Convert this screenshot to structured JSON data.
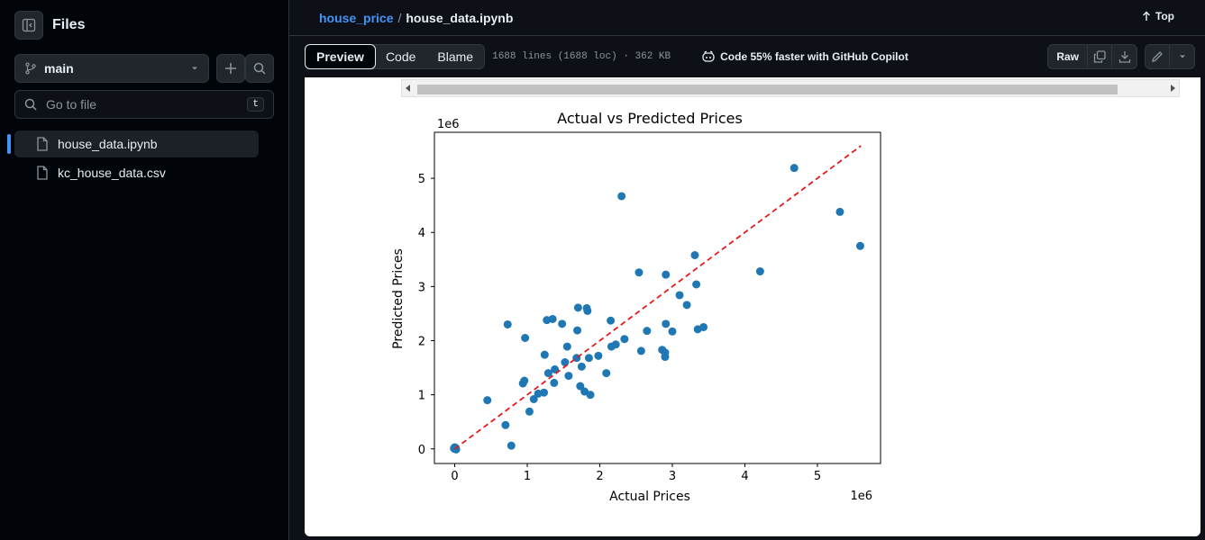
{
  "sidebar": {
    "title": "Files",
    "branch": "main",
    "search_placeholder": "Go to file",
    "search_shortcut": "t",
    "files": [
      {
        "name": "house_data.ipynb",
        "active": true
      },
      {
        "name": "kc_house_data.csv",
        "active": false
      }
    ]
  },
  "header": {
    "repo": "house_price",
    "separator": "/",
    "file": "house_data.ipynb",
    "top_link": "Top"
  },
  "toolbar": {
    "tabs": [
      "Preview",
      "Code",
      "Blame"
    ],
    "active_tab": "Preview",
    "meta": "1688 lines (1688 loc) · 362 KB",
    "copilot": "Code 55% faster with GitHub Copilot",
    "raw": "Raw"
  },
  "colors": {
    "accent": "#4493f8",
    "point": "#1f77b4",
    "ideal_line": "#e41a1c"
  },
  "chart_data": {
    "type": "scatter",
    "title": "Actual vs Predicted Prices",
    "xlabel": "Actual Prices",
    "ylabel": "Predicted Prices",
    "x_offset_label": "1e6",
    "y_offset_label": "1e6",
    "xlim": [
      -0.28,
      5.87
    ],
    "ylim": [
      -0.27,
      5.85
    ],
    "xticks": [
      0,
      1,
      2,
      3,
      4,
      5
    ],
    "yticks": [
      0,
      1,
      2,
      3,
      4,
      5
    ],
    "reference_line": {
      "style": "dashed",
      "from": [
        0,
        0
      ],
      "to": [
        5.6,
        5.6
      ]
    },
    "points": [
      [
        0.0,
        0.0
      ],
      [
        0.01,
        0.02
      ],
      [
        -0.01,
        0.01
      ],
      [
        0.02,
        -0.01
      ],
      [
        0.0,
        0.03
      ],
      [
        0.45,
        0.9
      ],
      [
        0.7,
        0.44
      ],
      [
        0.73,
        2.3
      ],
      [
        0.78,
        0.06
      ],
      [
        0.94,
        1.21
      ],
      [
        0.96,
        1.26
      ],
      [
        0.97,
        2.05
      ],
      [
        1.03,
        0.69
      ],
      [
        1.09,
        0.92
      ],
      [
        1.15,
        1.02
      ],
      [
        1.23,
        1.04
      ],
      [
        1.24,
        1.74
      ],
      [
        1.27,
        2.38
      ],
      [
        1.29,
        1.4
      ],
      [
        1.35,
        2.4
      ],
      [
        1.37,
        1.22
      ],
      [
        1.38,
        1.47
      ],
      [
        1.48,
        2.31
      ],
      [
        1.52,
        1.6
      ],
      [
        1.55,
        1.89
      ],
      [
        1.57,
        1.35
      ],
      [
        1.68,
        1.68
      ],
      [
        1.69,
        2.19
      ],
      [
        1.7,
        2.61
      ],
      [
        1.73,
        1.16
      ],
      [
        1.75,
        1.52
      ],
      [
        1.79,
        1.06
      ],
      [
        1.82,
        2.6
      ],
      [
        1.83,
        2.55
      ],
      [
        1.85,
        1.68
      ],
      [
        1.87,
        1.0
      ],
      [
        1.98,
        1.72
      ],
      [
        2.09,
        1.4
      ],
      [
        2.15,
        2.37
      ],
      [
        2.16,
        1.89
      ],
      [
        2.22,
        1.93
      ],
      [
        2.3,
        4.67
      ],
      [
        2.34,
        2.03
      ],
      [
        2.54,
        3.26
      ],
      [
        2.57,
        1.81
      ],
      [
        2.65,
        2.18
      ],
      [
        2.86,
        1.83
      ],
      [
        2.9,
        1.7
      ],
      [
        2.9,
        1.78
      ],
      [
        2.91,
        2.31
      ],
      [
        2.91,
        3.22
      ],
      [
        3.0,
        2.17
      ],
      [
        3.1,
        2.84
      ],
      [
        3.2,
        2.66
      ],
      [
        3.31,
        3.58
      ],
      [
        3.33,
        3.04
      ],
      [
        3.35,
        2.21
      ],
      [
        3.43,
        2.25
      ],
      [
        4.21,
        3.28
      ],
      [
        4.68,
        5.19
      ],
      [
        5.31,
        4.38
      ],
      [
        5.59,
        3.75
      ]
    ]
  }
}
